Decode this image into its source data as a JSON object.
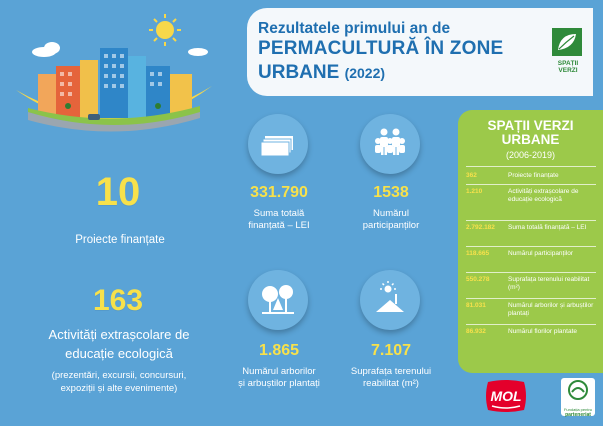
{
  "header": {
    "line1": "Rezultatele primului an de",
    "line2": "PERMACULTURĂ ÎN ZONE",
    "line3": "URBANE",
    "year": "(2022)",
    "logo_text_1": "SPAȚII",
    "logo_text_2": "VERZI"
  },
  "stats": {
    "projects": {
      "value": "10",
      "label": "Proiecte finanțate"
    },
    "activities": {
      "value": "163",
      "label_1": "Activități extrașcolare de",
      "label_2": "educație ecologică",
      "note_1": "(prezentări, excursii, concursuri,",
      "note_2": "expoziții și alte evenimente)"
    },
    "amount": {
      "value": "331.790",
      "label_1": "Suma totală",
      "label_2": "finanțată – LEI"
    },
    "participants": {
      "value": "1538",
      "label_1": "Numărul",
      "label_2": "participanților"
    },
    "trees": {
      "value": "1.865",
      "label_1": "Numărul arborilor",
      "label_2": "și arbuștilor plantați"
    },
    "area": {
      "value": "7.107",
      "label_1": "Suprafața terenului",
      "label_2": "reabilitat (m²)"
    }
  },
  "panel": {
    "title_1": "SPAȚII VERZI",
    "title_2": "URBANE",
    "subtitle": "(2006-2019)",
    "rows": [
      {
        "value": "362",
        "label": "Proiecte finanțate"
      },
      {
        "value": "1.210",
        "label": "Activități extrașcolare de educație ecologică"
      },
      {
        "value": "2.792.182",
        "label": "Suma totală finanțată – LEI"
      },
      {
        "value": "118.665",
        "label": "Numărul participanților"
      },
      {
        "value": "550.278",
        "label": "Suprafața terenului reabilitat (m²)"
      },
      {
        "value": "81.031",
        "label": "Numărul arborilor și arbuștilor plantați"
      },
      {
        "value": "86.932",
        "label": "Numărul florilor plantate"
      }
    ]
  },
  "footer": {
    "mol": "MOL",
    "partner_1": "Fundația pentru",
    "partner_2": "parteneriat"
  },
  "colors": {
    "background": "#5aa3d6",
    "accent_yellow": "#f7e14b",
    "panel_green": "#9cc94a",
    "title_blue": "#1f6fb0"
  }
}
